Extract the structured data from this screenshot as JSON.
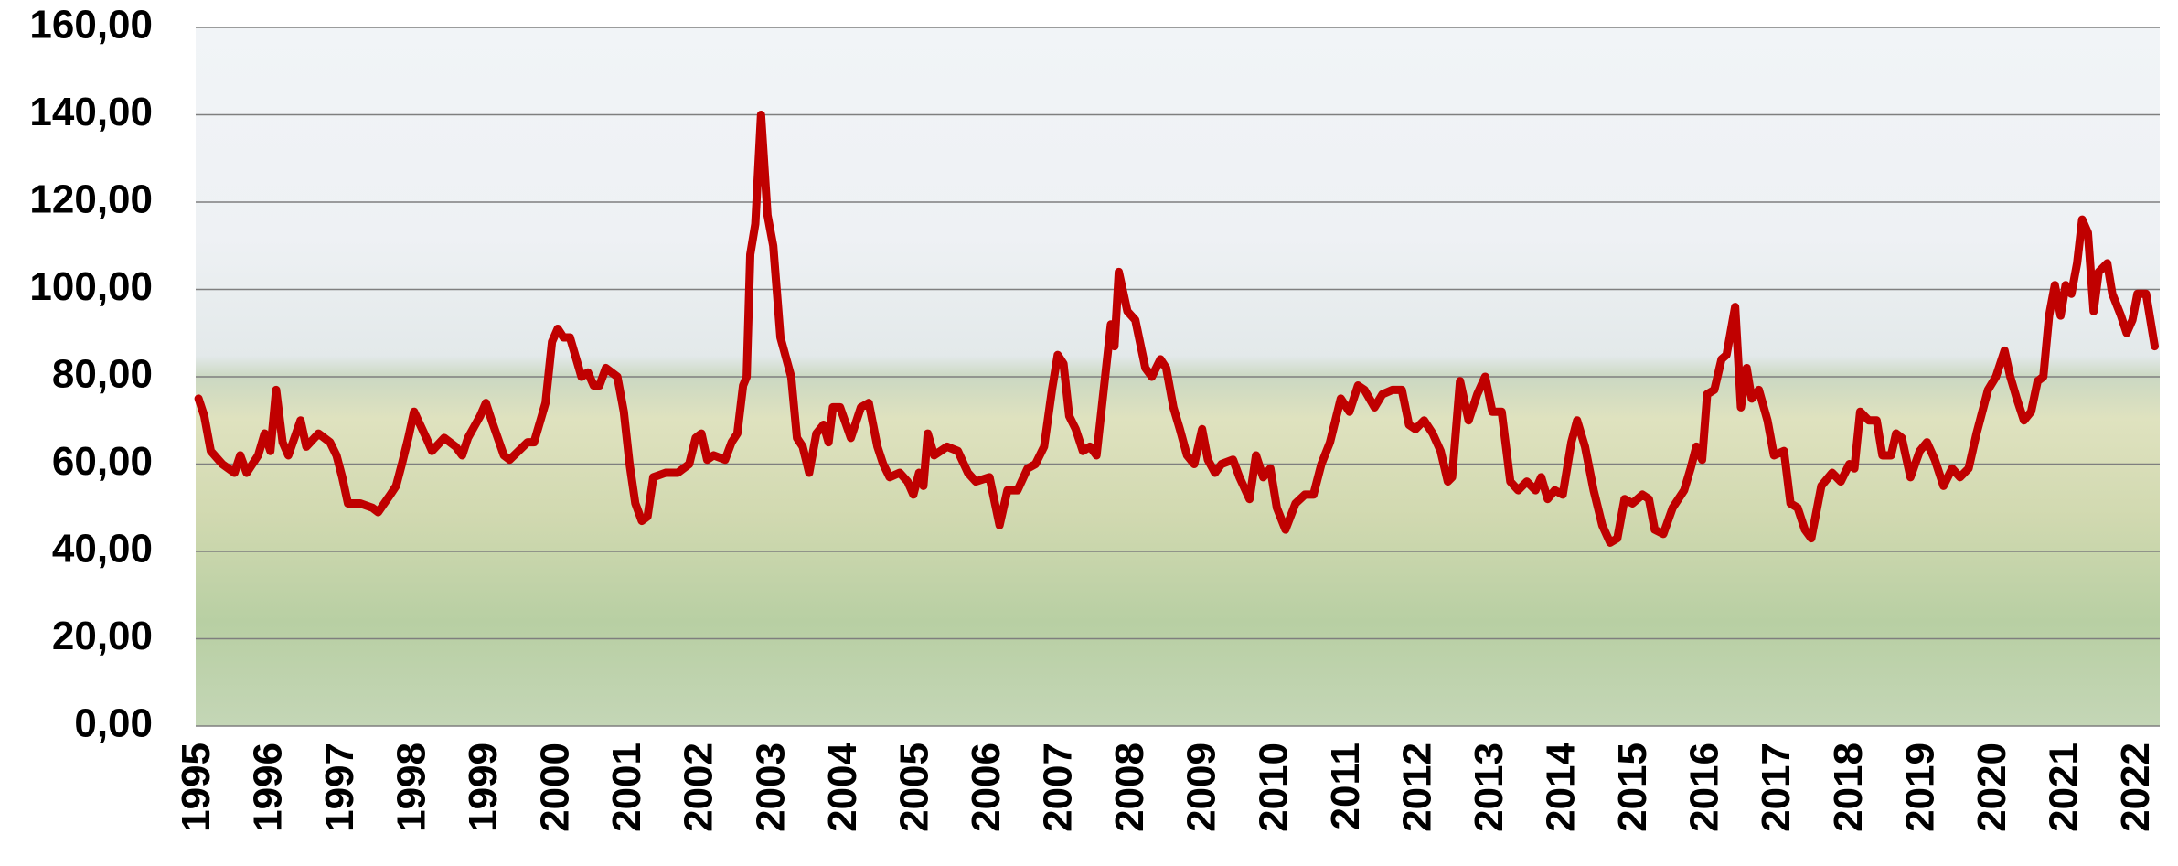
{
  "chart_data": {
    "type": "line",
    "color": "#c00000",
    "grid": true,
    "xlim": [
      1994.96,
      2022.3
    ],
    "xticks": [
      1995,
      1996,
      1997,
      1998,
      1999,
      2000,
      2001,
      2002,
      2003,
      2004,
      2005,
      2006,
      2007,
      2008,
      2009,
      2010,
      2011,
      2012,
      2013,
      2014,
      2015,
      2016,
      2017,
      2018,
      2019,
      2020,
      2021,
      2022
    ],
    "ylim": [
      0,
      160
    ],
    "yticks": [
      {
        "value": 0,
        "label": "0,00"
      },
      {
        "value": 20,
        "label": "20,00"
      },
      {
        "value": 40,
        "label": "40,00"
      },
      {
        "value": 60,
        "label": "60,00"
      },
      {
        "value": 80,
        "label": "80,00"
      },
      {
        "value": 100,
        "label": "100,00"
      },
      {
        "value": 120,
        "label": "120,00"
      },
      {
        "value": 140,
        "label": "140,00"
      },
      {
        "value": 160,
        "label": "160,00"
      }
    ],
    "x": [
      1995.0,
      1995.08,
      1995.17,
      1995.33,
      1995.5,
      1995.58,
      1995.67,
      1995.83,
      1995.92,
      1996.0,
      1996.08,
      1996.17,
      1996.25,
      1996.42,
      1996.5,
      1996.67,
      1996.83,
      1996.92,
      1997.0,
      1997.08,
      1997.25,
      1997.42,
      1997.5,
      1997.67,
      1997.75,
      1997.83,
      1997.92,
      1998.0,
      1998.17,
      1998.25,
      1998.42,
      1998.58,
      1998.67,
      1998.75,
      1998.92,
      1999.0,
      1999.08,
      1999.25,
      1999.33,
      1999.58,
      1999.67,
      1999.83,
      1999.92,
      2000.0,
      2000.08,
      2000.17,
      2000.33,
      2000.42,
      2000.5,
      2000.58,
      2000.67,
      2000.83,
      2000.92,
      2001.0,
      2001.08,
      2001.17,
      2001.25,
      2001.33,
      2001.5,
      2001.67,
      2001.83,
      2001.92,
      2002.0,
      2002.08,
      2002.17,
      2002.33,
      2002.42,
      2002.5,
      2002.58,
      2002.63,
      2002.68,
      2002.75,
      2002.83,
      2002.92,
      2003.0,
      2003.1,
      2003.25,
      2003.33,
      2003.41,
      2003.5,
      2003.6,
      2003.7,
      2003.77,
      2003.83,
      2003.93,
      2004.08,
      2004.22,
      2004.33,
      2004.45,
      2004.53,
      2004.62,
      2004.76,
      2004.87,
      2004.95,
      2005.03,
      2005.09,
      2005.15,
      2005.24,
      2005.42,
      2005.57,
      2005.71,
      2005.82,
      2006.01,
      2006.15,
      2006.26,
      2006.4,
      2006.54,
      2006.65,
      2006.77,
      2006.88,
      2006.96,
      2007.04,
      2007.12,
      2007.21,
      2007.31,
      2007.41,
      2007.5,
      2007.62,
      2007.7,
      2007.75,
      2007.81,
      2007.93,
      2008.04,
      2008.18,
      2008.27,
      2008.39,
      2008.47,
      2008.57,
      2008.66,
      2008.76,
      2008.86,
      2008.97,
      2009.05,
      2009.15,
      2009.24,
      2009.4,
      2009.49,
      2009.63,
      2009.72,
      2009.82,
      2009.92,
      2010.01,
      2010.13,
      2010.27,
      2010.4,
      2010.52,
      2010.63,
      2010.75,
      2010.9,
      2011.02,
      2011.14,
      2011.23,
      2011.37,
      2011.48,
      2011.62,
      2011.75,
      2011.85,
      2011.94,
      2012.06,
      2012.18,
      2012.29,
      2012.39,
      2012.45,
      2012.56,
      2012.68,
      2012.8,
      2012.91,
      2013.01,
      2013.14,
      2013.26,
      2013.37,
      2013.49,
      2013.61,
      2013.69,
      2013.78,
      2013.88,
      2013.99,
      2014.11,
      2014.19,
      2014.3,
      2014.42,
      2014.54,
      2014.65,
      2014.75,
      2014.85,
      2014.96,
      2015.1,
      2015.19,
      2015.27,
      2015.39,
      2015.52,
      2015.68,
      2015.77,
      2015.85,
      2015.93,
      2016.0,
      2016.1,
      2016.2,
      2016.27,
      2016.39,
      2016.47,
      2016.55,
      2016.62,
      2016.72,
      2016.84,
      2016.93,
      2017.07,
      2017.16,
      2017.26,
      2017.36,
      2017.45,
      2017.59,
      2017.74,
      2017.86,
      2017.98,
      2018.05,
      2018.13,
      2018.25,
      2018.36,
      2018.44,
      2018.56,
      2018.63,
      2018.71,
      2018.83,
      2018.96,
      2019.06,
      2019.17,
      2019.29,
      2019.41,
      2019.52,
      2019.64,
      2019.75,
      2019.91,
      2020.02,
      2020.14,
      2020.22,
      2020.31,
      2020.41,
      2020.51,
      2020.6,
      2020.68,
      2020.76,
      2020.84,
      2020.92,
      2020.99,
      2021.07,
      2021.15,
      2021.22,
      2021.3,
      2021.38,
      2021.45,
      2021.57,
      2021.64,
      2021.76,
      2021.84,
      2021.92,
      2021.99,
      2022.11,
      2022.23
    ],
    "values": [
      75,
      71,
      63,
      60,
      58,
      62,
      58,
      62,
      67,
      63,
      77,
      65,
      62,
      70,
      64,
      67,
      65,
      62,
      57,
      51,
      51,
      50,
      49,
      53,
      55,
      60,
      66,
      72,
      66,
      63,
      66,
      64,
      62,
      66,
      71,
      74,
      70,
      62,
      61,
      65,
      65,
      74,
      88,
      91,
      89,
      89,
      80,
      81,
      78,
      78,
      82,
      80,
      72,
      60,
      51,
      47,
      48,
      57,
      58,
      58,
      60,
      66,
      67,
      61,
      62,
      61,
      65,
      67,
      78,
      80,
      108,
      115,
      140,
      117,
      110,
      89,
      80,
      66,
      64,
      58,
      67,
      69,
      65,
      73,
      73,
      66,
      73,
      74,
      64,
      60,
      57,
      58,
      56,
      53,
      58,
      55,
      67,
      62,
      64,
      63,
      58,
      56,
      57,
      46,
      54,
      54,
      59,
      60,
      64,
      77,
      85,
      83,
      71,
      68,
      63,
      64,
      62,
      80,
      92,
      87,
      104,
      95,
      93,
      82,
      80,
      84,
      82,
      73,
      68,
      62,
      60,
      68,
      61,
      58,
      60,
      61,
      57,
      52,
      62,
      57,
      59,
      50,
      45,
      51,
      53,
      53,
      60,
      65,
      75,
      72,
      78,
      77,
      73,
      76,
      77,
      77,
      69,
      68,
      70,
      67,
      63,
      56,
      57,
      79,
      70,
      76,
      80,
      72,
      72,
      56,
      54,
      56,
      54,
      57,
      52,
      54,
      53,
      65,
      70,
      64,
      54,
      46,
      42,
      43,
      52,
      51,
      53,
      52,
      45,
      44,
      50,
      54,
      59,
      64,
      61,
      76,
      77,
      84,
      85,
      96,
      73,
      82,
      75,
      77,
      70,
      62,
      63,
      51,
      50,
      45,
      43,
      55,
      58,
      56,
      60,
      59,
      72,
      70,
      70,
      62,
      62,
      67,
      66,
      57,
      63,
      65,
      61,
      55,
      59,
      57,
      59,
      67,
      77,
      80,
      86,
      80,
      75,
      70,
      72,
      79,
      80,
      94,
      101,
      94,
      101,
      99,
      106,
      116,
      113,
      95,
      104,
      106,
      99,
      94,
      90,
      93,
      99,
      99,
      87
    ]
  }
}
